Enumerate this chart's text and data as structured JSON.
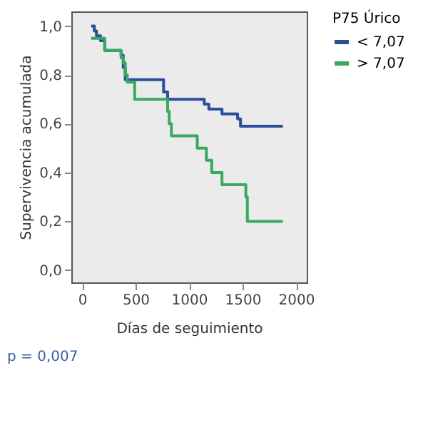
{
  "chart_data": {
    "type": "step",
    "xlabel": "Días de seguimiento",
    "ylabel": "Supervivencia acumulada",
    "legend_title": "P75 Úrico",
    "legend": "right",
    "xlim": [
      -100,
      2100
    ],
    "xticks": [
      0,
      500,
      1000,
      1500,
      2000
    ],
    "ylim": [
      -0.05,
      1.06
    ],
    "yticks": [
      {
        "value": 0,
        "label": "0,0"
      },
      {
        "value": 0.2,
        "label": "0,2"
      },
      {
        "value": 0.4,
        "label": "0,4"
      },
      {
        "value": 0.6,
        "label": "0,6"
      },
      {
        "value": 0.8,
        "label": "0,8"
      },
      {
        "value": 1,
        "label": "1,0"
      }
    ],
    "grid": false,
    "series": [
      {
        "name": "< 7,07",
        "color": "#2a4f9a",
        "x": [
          85,
          115,
          135,
          173,
          212,
          365,
          385,
          404,
          762,
          800,
          1142,
          1185,
          1308,
          1454,
          1481,
          1877
        ],
        "values": [
          1.0,
          0.98,
          0.96,
          0.94,
          0.9,
          0.88,
          0.83,
          0.78,
          0.73,
          0.7,
          0.68,
          0.66,
          0.64,
          0.62,
          0.59,
          0.59
        ]
      },
      {
        "name": "> 7,07",
        "color": "#3aa860",
        "x": [
          85,
          212,
          365,
          385,
          404,
          423,
          492,
          800,
          815,
          835,
          1077,
          1162,
          1212,
          1308,
          1531,
          1545,
          1877
        ],
        "values": [
          0.95,
          0.9,
          0.87,
          0.85,
          0.8,
          0.77,
          0.7,
          0.65,
          0.6,
          0.55,
          0.5,
          0.45,
          0.4,
          0.35,
          0.3,
          0.2,
          0.2
        ]
      }
    ],
    "annotations": [
      "p = 0,007"
    ]
  }
}
